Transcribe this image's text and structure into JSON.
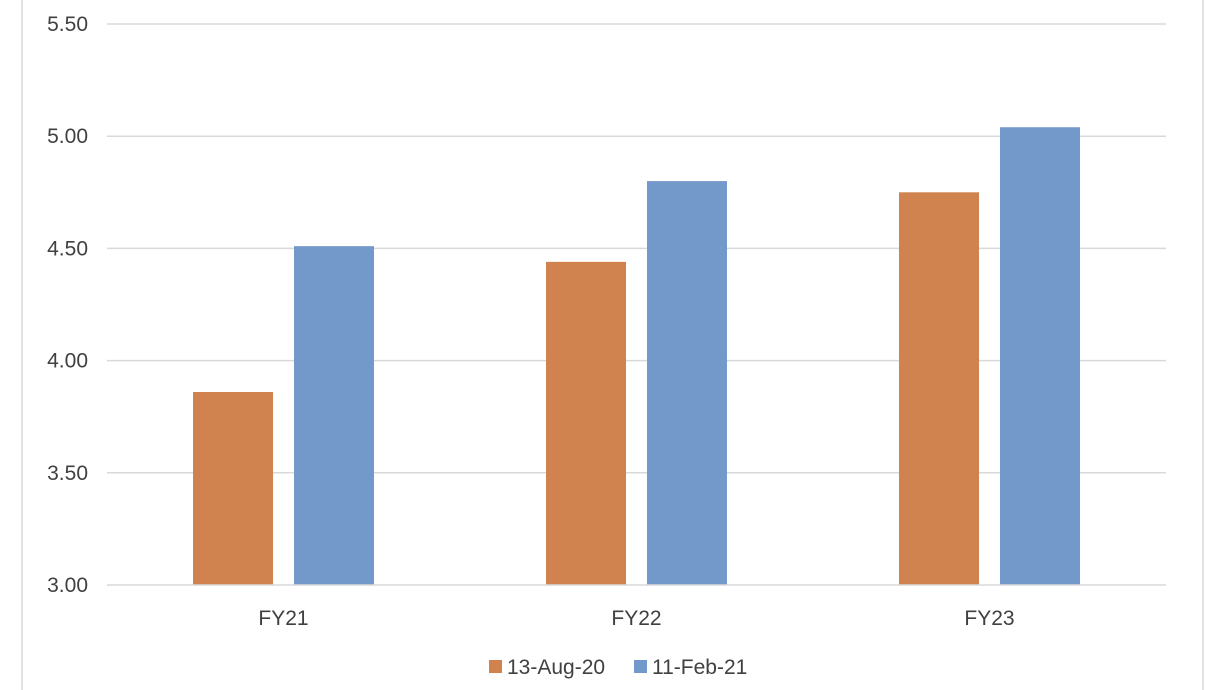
{
  "chart_data": {
    "type": "bar",
    "categories": [
      "FY21",
      "FY22",
      "FY23"
    ],
    "series": [
      {
        "name": "13-Aug-20",
        "color": "#D0834F",
        "values": [
          3.86,
          4.44,
          4.75
        ]
      },
      {
        "name": "11-Feb-21",
        "color": "#7399CB",
        "values": [
          4.51,
          4.8,
          5.04
        ]
      }
    ],
    "title": "",
    "xlabel": "",
    "ylabel": "",
    "ylim": [
      3.0,
      5.5
    ],
    "yticks": [
      "3.00",
      "3.50",
      "4.00",
      "4.50",
      "5.00",
      "5.50"
    ],
    "grid": true,
    "legend_position": "bottom"
  }
}
